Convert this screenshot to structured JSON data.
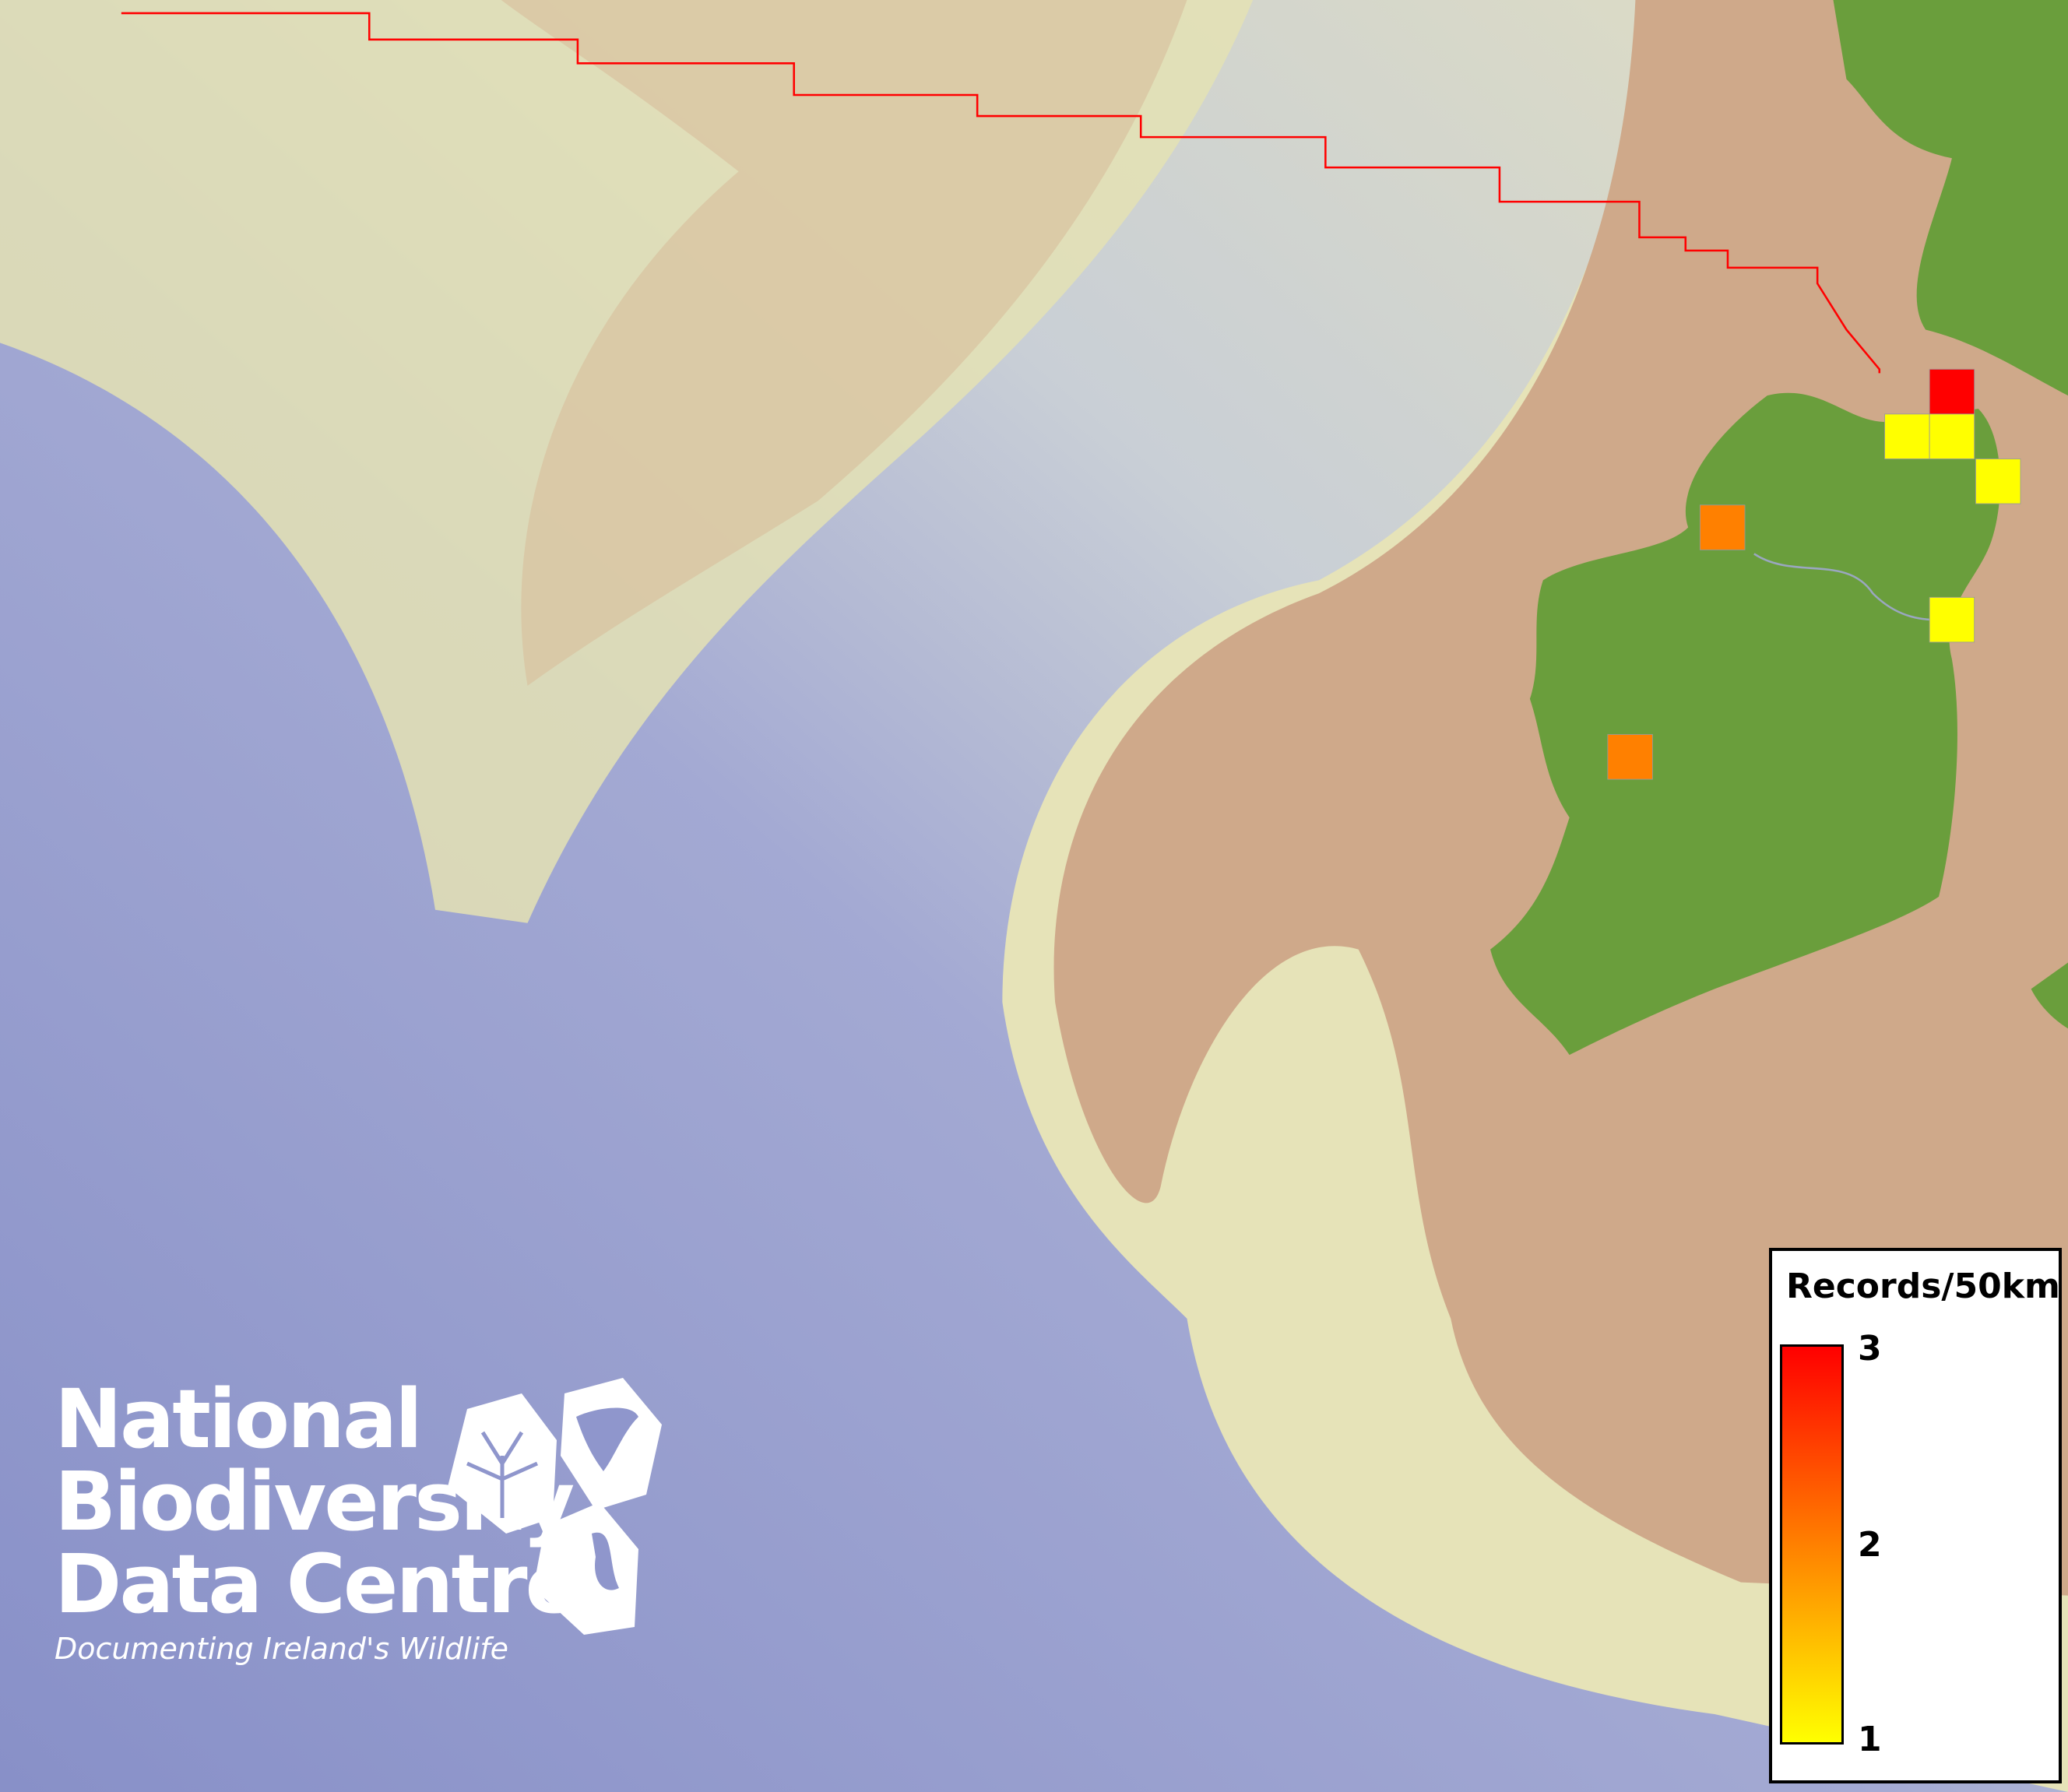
{
  "legend": {
    "title": "Records/50km",
    "ticks": [
      "3",
      "2",
      "1"
    ],
    "min": 1,
    "max": 3,
    "color_low": "#ffff00",
    "color_mid": "#ff8000",
    "color_high": "#ff0000"
  },
  "grid_cells": {
    "values": [
      3,
      1,
      1,
      1,
      2,
      1,
      2
    ]
  },
  "colors": {
    "land": "#6a9e3c",
    "shelf": "#cfa98a",
    "slope": "#e4e2b4",
    "deep_sea": "#8f96cc",
    "boundary": "#ff0000"
  },
  "logo": {
    "line1": "National",
    "line2": "Biodiversity",
    "line3": "Data Centre",
    "tagline": "Documenting Ireland's Wildlife",
    "icons": [
      "plant-icon",
      "butterfly-icon",
      "seahorse-icon"
    ]
  }
}
